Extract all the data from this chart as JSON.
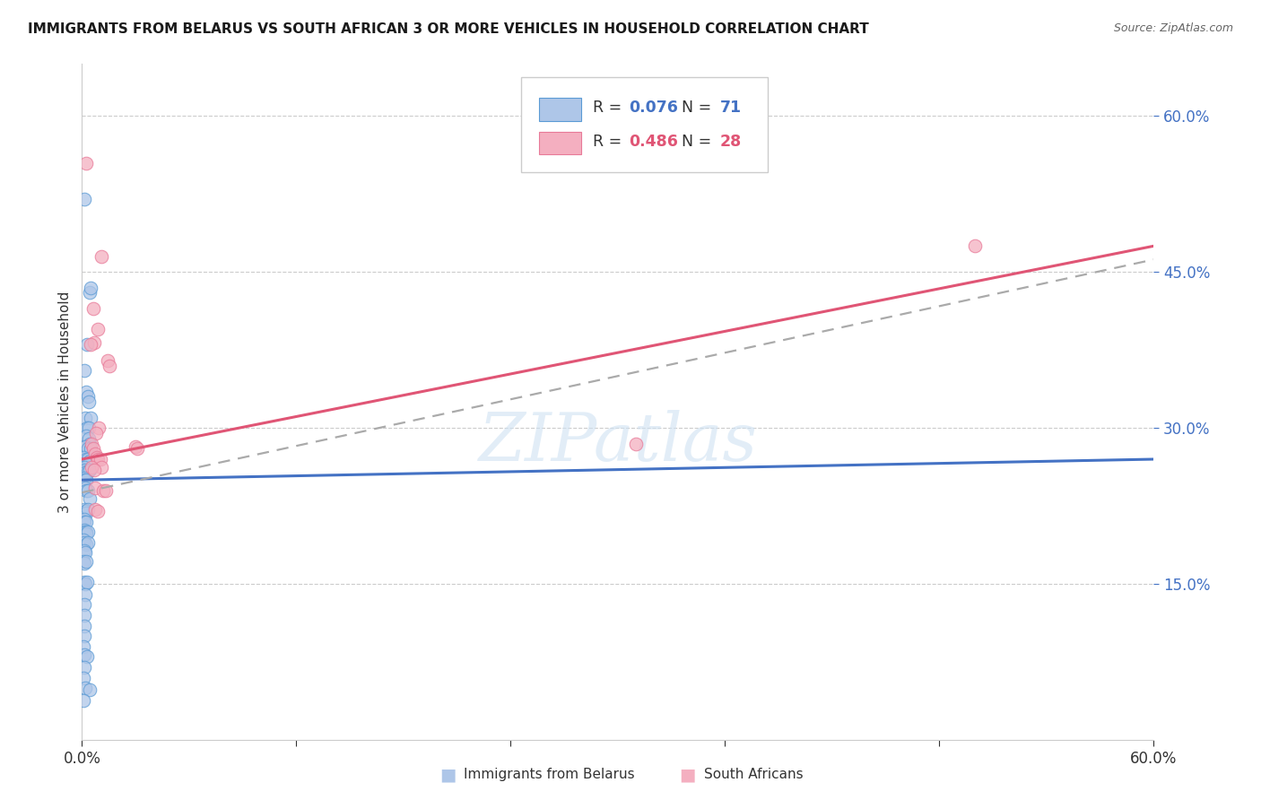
{
  "title": "IMMIGRANTS FROM BELARUS VS SOUTH AFRICAN 3 OR MORE VEHICLES IN HOUSEHOLD CORRELATION CHART",
  "source": "Source: ZipAtlas.com",
  "ylabel": "3 or more Vehicles in Household",
  "legend_label1": "Immigrants from Belarus",
  "legend_label2": "South Africans",
  "R1": "0.076",
  "N1": "71",
  "R2": "0.486",
  "N2": "28",
  "ytick_labels": [
    "15.0%",
    "30.0%",
    "45.0%",
    "60.0%"
  ],
  "ytick_values": [
    0.15,
    0.3,
    0.45,
    0.6
  ],
  "watermark_text": "ZIPatlas",
  "blue_fill": "#aec6e8",
  "pink_fill": "#f4afc0",
  "blue_edge": "#5b9bd5",
  "pink_edge": "#e87a98",
  "blue_line_color": "#4472c4",
  "pink_line_color": "#e05575",
  "dashed_line_color": "#7fa8d8",
  "xmin": 0.0,
  "xmax": 0.6,
  "ymin": 0.0,
  "ymax": 0.65,
  "blue_dots": [
    [
      0.0015,
      0.52
    ],
    [
      0.0045,
      0.43
    ],
    [
      0.005,
      0.435
    ],
    [
      0.003,
      0.38
    ],
    [
      0.0015,
      0.355
    ],
    [
      0.0025,
      0.335
    ],
    [
      0.0035,
      0.33
    ],
    [
      0.004,
      0.325
    ],
    [
      0.002,
      0.31
    ],
    [
      0.005,
      0.31
    ],
    [
      0.003,
      0.3
    ],
    [
      0.004,
      0.3
    ],
    [
      0.0025,
      0.292
    ],
    [
      0.0038,
      0.29
    ],
    [
      0.0042,
      0.285
    ],
    [
      0.0018,
      0.282
    ],
    [
      0.0032,
      0.28
    ],
    [
      0.0048,
      0.28
    ],
    [
      0.001,
      0.272
    ],
    [
      0.0022,
      0.27
    ],
    [
      0.0032,
      0.27
    ],
    [
      0.0045,
      0.268
    ],
    [
      0.0012,
      0.262
    ],
    [
      0.002,
      0.26
    ],
    [
      0.0025,
      0.258
    ],
    [
      0.0035,
      0.258
    ],
    [
      0.0042,
      0.26
    ],
    [
      0.0012,
      0.252
    ],
    [
      0.0015,
      0.25
    ],
    [
      0.0022,
      0.25
    ],
    [
      0.0018,
      0.242
    ],
    [
      0.0025,
      0.24
    ],
    [
      0.0032,
      0.24
    ],
    [
      0.0042,
      0.232
    ],
    [
      0.0012,
      0.222
    ],
    [
      0.002,
      0.22
    ],
    [
      0.0025,
      0.218
    ],
    [
      0.0035,
      0.222
    ],
    [
      0.0012,
      0.212
    ],
    [
      0.0015,
      0.21
    ],
    [
      0.0022,
      0.21
    ],
    [
      0.0012,
      0.202
    ],
    [
      0.0015,
      0.2
    ],
    [
      0.0022,
      0.2
    ],
    [
      0.0025,
      0.198
    ],
    [
      0.0032,
      0.2
    ],
    [
      0.001,
      0.192
    ],
    [
      0.0015,
      0.19
    ],
    [
      0.0022,
      0.188
    ],
    [
      0.0032,
      0.19
    ],
    [
      0.0012,
      0.182
    ],
    [
      0.002,
      0.18
    ],
    [
      0.001,
      0.172
    ],
    [
      0.0015,
      0.17
    ],
    [
      0.0022,
      0.172
    ],
    [
      0.0012,
      0.152
    ],
    [
      0.002,
      0.15
    ],
    [
      0.003,
      0.152
    ],
    [
      0.002,
      0.14
    ],
    [
      0.0012,
      0.13
    ],
    [
      0.0012,
      0.12
    ],
    [
      0.0012,
      0.11
    ],
    [
      0.0012,
      0.1
    ],
    [
      0.001,
      0.09
    ],
    [
      0.0012,
      0.082
    ],
    [
      0.003,
      0.08
    ],
    [
      0.0012,
      0.07
    ],
    [
      0.001,
      0.06
    ],
    [
      0.002,
      0.05
    ],
    [
      0.0042,
      0.048
    ],
    [
      0.001,
      0.038
    ]
  ],
  "pink_dots": [
    [
      0.0025,
      0.555
    ],
    [
      0.011,
      0.465
    ],
    [
      0.0065,
      0.415
    ],
    [
      0.009,
      0.395
    ],
    [
      0.007,
      0.382
    ],
    [
      0.005,
      0.38
    ],
    [
      0.0145,
      0.365
    ],
    [
      0.0155,
      0.36
    ],
    [
      0.0095,
      0.3
    ],
    [
      0.008,
      0.295
    ],
    [
      0.0055,
      0.285
    ],
    [
      0.0065,
      0.28
    ],
    [
      0.0072,
      0.275
    ],
    [
      0.0082,
      0.272
    ],
    [
      0.009,
      0.27
    ],
    [
      0.0105,
      0.27
    ],
    [
      0.0108,
      0.262
    ],
    [
      0.0055,
      0.262
    ],
    [
      0.0068,
      0.26
    ],
    [
      0.0075,
      0.242
    ],
    [
      0.012,
      0.24
    ],
    [
      0.0132,
      0.24
    ],
    [
      0.0075,
      0.222
    ],
    [
      0.009,
      0.22
    ],
    [
      0.03,
      0.282
    ],
    [
      0.031,
      0.28
    ],
    [
      0.5,
      0.475
    ],
    [
      0.31,
      0.285
    ]
  ],
  "blue_line_x": [
    0.0,
    0.6
  ],
  "blue_line_y": [
    0.25,
    0.27
  ],
  "pink_line_x": [
    0.0,
    0.6
  ],
  "pink_line_y": [
    0.27,
    0.475
  ],
  "dashed_line_x": [
    0.0,
    0.6
  ],
  "dashed_line_y": [
    0.238,
    0.462
  ]
}
